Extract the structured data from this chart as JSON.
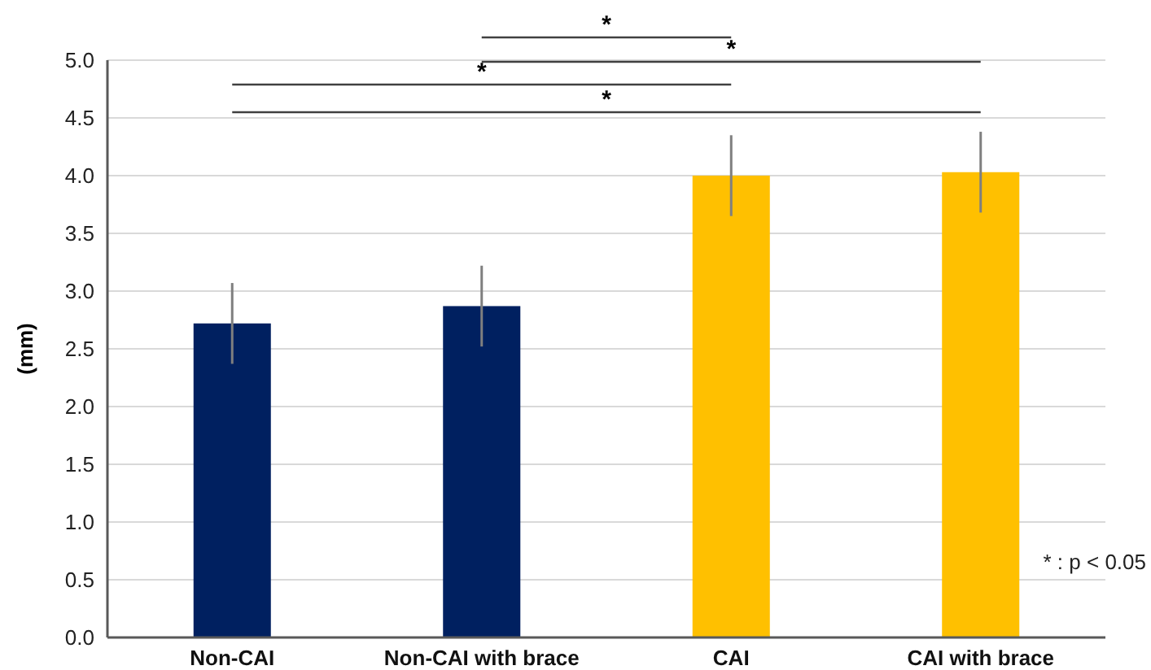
{
  "chart_data": {
    "type": "bar",
    "ylabel": "(mm)",
    "categories": [
      "Non-CAI",
      "Non-CAI with brace",
      "CAI",
      "CAI with brace"
    ],
    "values": [
      2.72,
      2.87,
      4.0,
      4.03
    ],
    "colors": [
      "#002060",
      "#002060",
      "#ffc000",
      "#ffc000"
    ],
    "errors": [
      0.35,
      0.35,
      0.35,
      0.35
    ],
    "ylim": [
      0,
      5
    ],
    "yticks": [
      {
        "value": 0,
        "label": "0.0"
      },
      {
        "value": 0.5,
        "label": "0.5"
      },
      {
        "value": 1,
        "label": "1.0"
      },
      {
        "value": 1.5,
        "label": "1.5"
      },
      {
        "value": 2,
        "label": "2.0"
      },
      {
        "value": 2.5,
        "label": "2.5"
      },
      {
        "value": 3,
        "label": "3.0"
      },
      {
        "value": 3.5,
        "label": "3.5"
      },
      {
        "value": 4,
        "label": "4.0"
      },
      {
        "value": 4.5,
        "label": "4.5"
      },
      {
        "value": 5,
        "label": "5.0"
      }
    ],
    "grid": "y",
    "annotations": [
      "*",
      "*",
      "*",
      "*",
      "* : p < 0.05"
    ]
  }
}
